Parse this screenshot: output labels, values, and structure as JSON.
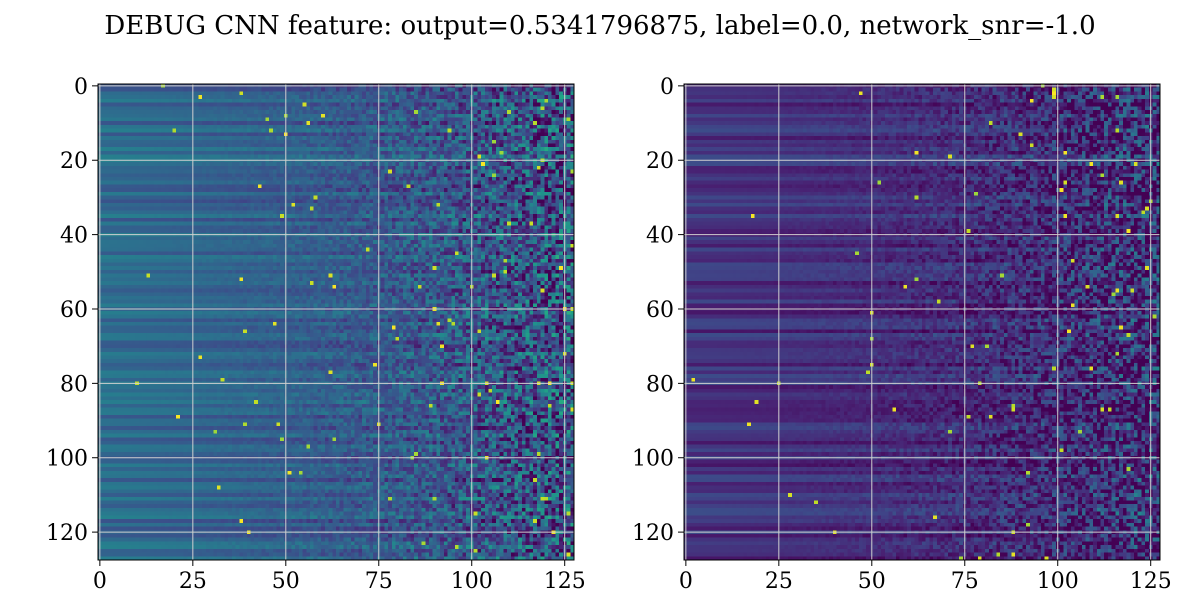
{
  "title": "DEBUG CNN feature: output=0.5341796875, label=0.0, network_snr=-1.0",
  "chart_data": [
    {
      "type": "heatmap",
      "colormap": "viridis",
      "rows": 128,
      "cols": 128,
      "xlim": [
        0,
        127
      ],
      "ylim": [
        127,
        0
      ],
      "xticks": [
        "0",
        "25",
        "50",
        "75",
        "100",
        "125"
      ],
      "yticks": [
        "0",
        "20",
        "40",
        "60",
        "80",
        "100",
        "120"
      ],
      "xtick_values": [
        0,
        25,
        50,
        75,
        100,
        125
      ],
      "ytick_values": [
        0,
        20,
        40,
        60,
        80,
        100,
        120
      ],
      "grid": true,
      "description": "low uniform horizontal banding on left columns, increasing noisy variance toward right columns",
      "base_level": 0.35,
      "noise_level": 0.45
    },
    {
      "type": "heatmap",
      "colormap": "viridis",
      "rows": 128,
      "cols": 128,
      "xlim": [
        0,
        127
      ],
      "ylim": [
        127,
        0
      ],
      "xticks": [
        "0",
        "25",
        "50",
        "75",
        "100",
        "125"
      ],
      "yticks": [
        "0",
        "20",
        "40",
        "60",
        "80",
        "100",
        "120"
      ],
      "xtick_values": [
        0,
        25,
        50,
        75,
        100,
        125
      ],
      "ytick_values": [
        0,
        20,
        40,
        60,
        80,
        100,
        120
      ],
      "grid": true,
      "description": "dark purple horizontal banding on left columns, increasing noisy variance toward right columns",
      "base_level": 0.15,
      "noise_level": 0.4
    }
  ]
}
